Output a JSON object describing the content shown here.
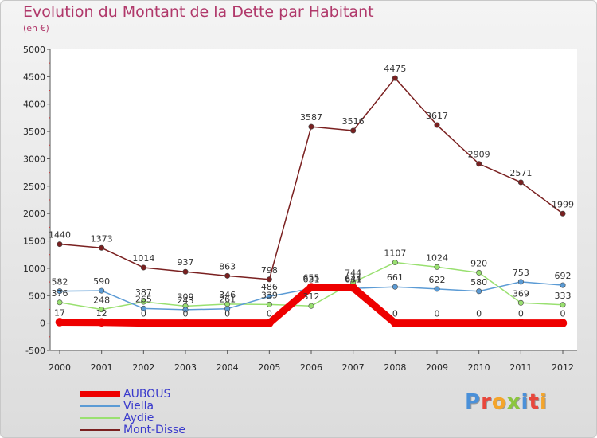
{
  "header": {
    "title": "Evolution du Montant de la Dette par Habitant",
    "subtitle": "(en €)"
  },
  "logo": {
    "letters": [
      "P",
      "r",
      "o",
      "x",
      "i",
      "t",
      "i"
    ],
    "colors": [
      "#4a90d9",
      "#e8473c",
      "#f4a52b",
      "#8cc63f",
      "#4a90d9",
      "#e8473c",
      "#f4a52b"
    ]
  },
  "chart_data": {
    "type": "line",
    "title": "Evolution du Montant de la Dette par Habitant",
    "subtitle": "(en €)",
    "xlabel": "",
    "ylabel": "",
    "x": [
      "2000",
      "2001",
      "2002",
      "2003",
      "2004",
      "2005",
      "2006",
      "2007",
      "2008",
      "2009",
      "2010",
      "2011",
      "2012"
    ],
    "ylim": [
      -500,
      5000
    ],
    "yticks": [
      -500,
      0,
      500,
      1000,
      1500,
      2000,
      2500,
      3000,
      3500,
      4000,
      4500,
      5000
    ],
    "grid": false,
    "legend_position": "bottom-left",
    "series": [
      {
        "name": "AUBOUS",
        "color": "#ee0000",
        "values": [
          17,
          12,
          0,
          0,
          0,
          0,
          655,
          644,
          0,
          0,
          0,
          0,
          0
        ],
        "labels": [
          "17",
          "12",
          "0",
          "0",
          "0",
          "0",
          "655",
          "644",
          "0",
          "0",
          "0",
          "0",
          "0"
        ]
      },
      {
        "name": "Viella",
        "color": "#5b9bd5",
        "values": [
          582,
          590,
          265,
          243,
          261,
          486,
          631,
          631,
          661,
          622,
          580,
          753,
          692
        ],
        "labels": [
          "582",
          "590",
          "265",
          "243",
          "261",
          "486",
          "631",
          "631",
          "661",
          "622",
          "580",
          "753",
          "692"
        ]
      },
      {
        "name": "Aydie",
        "color": "#99e070",
        "values": [
          376,
          248,
          387,
          309,
          346,
          339,
          312,
          744,
          1107,
          1024,
          920,
          369,
          333
        ],
        "labels": [
          "376",
          "248",
          "387",
          "309",
          "346",
          "339",
          "312",
          "744",
          "1107",
          "1024",
          "920",
          "369",
          "333"
        ]
      },
      {
        "name": "Mont-Disse",
        "color": "#7a2020",
        "values": [
          1440,
          1373,
          1014,
          937,
          863,
          798,
          3587,
          3516,
          4475,
          3617,
          2909,
          2571,
          1999
        ],
        "labels": [
          "1440",
          "1373",
          "1014",
          "937",
          "863",
          "798",
          "3587",
          "3516",
          "4475",
          "3617",
          "2909",
          "2571",
          "1999"
        ]
      }
    ]
  }
}
